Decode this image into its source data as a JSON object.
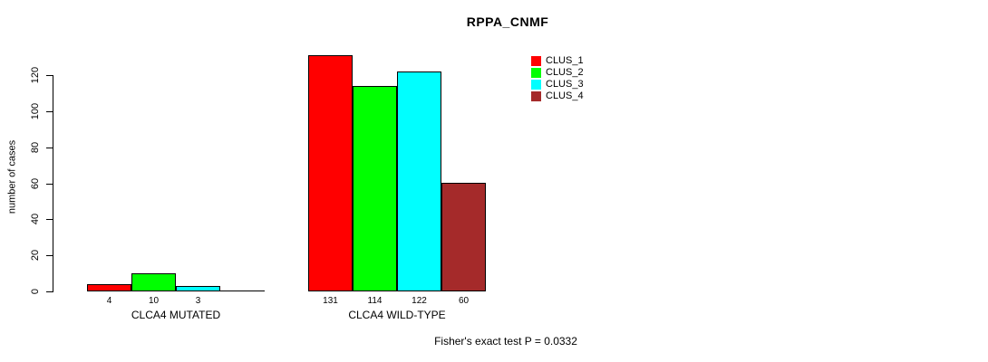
{
  "title": "RPPA_CNMF",
  "ylabel": "number of cases",
  "footer": "Fisher's exact test P = 0.0332",
  "legend": [
    {
      "label": "CLUS_1",
      "color": "#FF0000"
    },
    {
      "label": "CLUS_2",
      "color": "#00FF00"
    },
    {
      "label": "CLUS_3",
      "color": "#00FFFF"
    },
    {
      "label": "CLUS_4",
      "color": "#A52A2A"
    }
  ],
  "chart_data": {
    "type": "bar",
    "title": "RPPA_CNMF",
    "xlabel": "",
    "ylabel": "number of cases",
    "categories": [
      "CLCA4 MUTATED",
      "CLCA4 WILD-TYPE"
    ],
    "series": [
      {
        "name": "CLUS_1",
        "color": "#FF0000",
        "values": [
          4,
          131
        ]
      },
      {
        "name": "CLUS_2",
        "color": "#00FF00",
        "values": [
          10,
          114
        ]
      },
      {
        "name": "CLUS_3",
        "color": "#00FFFF",
        "values": [
          3,
          122
        ]
      },
      {
        "name": "CLUS_4",
        "color": "#A52A2A",
        "values": [
          0,
          60
        ]
      }
    ],
    "yticks": [
      0,
      20,
      40,
      60,
      80,
      100,
      120
    ],
    "ylim": [
      0,
      132
    ],
    "grid": false,
    "legend_position": "top-right",
    "bar_value_labels": true,
    "annotation": "Fisher's exact test P = 0.0332"
  }
}
